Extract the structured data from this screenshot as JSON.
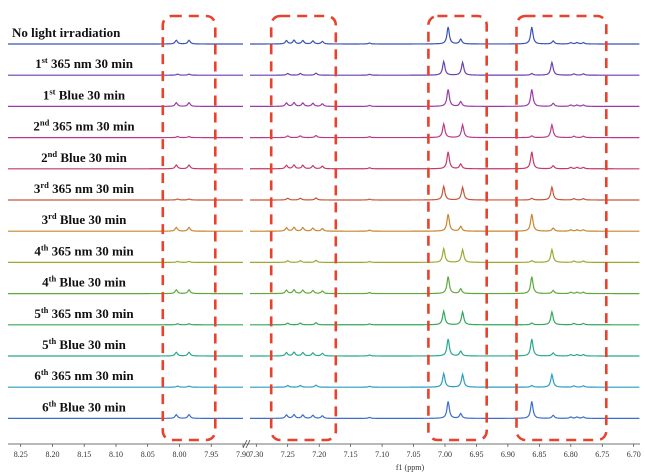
{
  "chart_data": {
    "type": "line",
    "xlabel": "f1 (ppm)",
    "x_axis_reversed": true,
    "x_axis_break": [
      8.0,
      7.3
    ],
    "ticks_left": [
      "8.25",
      "8.20",
      "8.15",
      "8.10",
      "8.05",
      "8.00",
      "7.95",
      "7.90"
    ],
    "ticks_right": [
      "7.30",
      "7.25",
      "7.20",
      "7.15",
      "7.10",
      "7.05",
      "7.00",
      "6.95",
      "6.90",
      "6.85",
      "6.80",
      "6.75",
      "6.70"
    ],
    "highlight_regions_ppm": [
      [
        8.02,
        7.95
      ],
      [
        7.27,
        7.18
      ],
      [
        7.02,
        6.94
      ],
      [
        6.88,
        6.75
      ]
    ],
    "highlight_color": "#e8412c",
    "spectra": [
      {
        "label": "No light irradiation",
        "ordinal": "",
        "ordinal_sup": "",
        "condition": "",
        "state": "blue",
        "color": "#3a52b3"
      },
      {
        "label": "365 nm 30 min",
        "ordinal": "1",
        "ordinal_sup": "st",
        "condition": "365 nm 30 min",
        "state": "uv",
        "color": "#6c3fb3"
      },
      {
        "label": "Blue 30 min",
        "ordinal": "1",
        "ordinal_sup": "st",
        "condition": "Blue 30 min",
        "state": "blue",
        "color": "#9b3aa8"
      },
      {
        "label": "365 nm 30 min",
        "ordinal": "2",
        "ordinal_sup": "nd",
        "condition": "365 nm 30 min",
        "state": "uv",
        "color": "#b83a8a"
      },
      {
        "label": "Blue 30 min",
        "ordinal": "2",
        "ordinal_sup": "nd",
        "condition": "Blue 30 min",
        "state": "blue",
        "color": "#c43a62"
      },
      {
        "label": "365 nm 30 min",
        "ordinal": "3",
        "ordinal_sup": "rd",
        "condition": "365 nm 30 min",
        "state": "uv",
        "color": "#c8543a"
      },
      {
        "label": "Blue 30 min",
        "ordinal": "3",
        "ordinal_sup": "rd",
        "condition": "Blue 30 min",
        "state": "blue",
        "color": "#c8852e"
      },
      {
        "label": "365 nm 30 min",
        "ordinal": "4",
        "ordinal_sup": "th",
        "condition": "365 nm 30 min",
        "state": "uv",
        "color": "#9ea830"
      },
      {
        "label": "Blue 30 min",
        "ordinal": "4",
        "ordinal_sup": "th",
        "condition": "Blue 30 min",
        "state": "blue",
        "color": "#5fa83c"
      },
      {
        "label": "365 nm 30 min",
        "ordinal": "5",
        "ordinal_sup": "th",
        "condition": "365 nm 30 min",
        "state": "uv",
        "color": "#34a85a"
      },
      {
        "label": "Blue 30 min",
        "ordinal": "5",
        "ordinal_sup": "th",
        "condition": "Blue 30 min",
        "state": "blue",
        "color": "#2aa88e"
      },
      {
        "label": "365 nm 30 min",
        "ordinal": "6",
        "ordinal_sup": "th",
        "condition": "365 nm 30 min",
        "state": "uv",
        "color": "#2a9ec0"
      },
      {
        "label": "Blue 30 min",
        "ordinal": "6",
        "ordinal_sup": "th",
        "condition": "Blue 30 min",
        "state": "blue",
        "color": "#3a6ec8"
      }
    ],
    "peaks_ppm": {
      "blue": [
        {
          "x": 8.005,
          "h": 0.22
        },
        {
          "x": 7.985,
          "h": 0.22
        },
        {
          "x": 7.252,
          "h": 0.2
        },
        {
          "x": 7.24,
          "h": 0.22
        },
        {
          "x": 7.226,
          "h": 0.2
        },
        {
          "x": 7.21,
          "h": 0.18
        },
        {
          "x": 7.195,
          "h": 0.15
        },
        {
          "x": 7.12,
          "h": 0.06
        },
        {
          "x": 6.995,
          "h": 1.0
        },
        {
          "x": 6.975,
          "h": 0.28
        },
        {
          "x": 6.862,
          "h": 1.0
        },
        {
          "x": 6.828,
          "h": 0.18
        },
        {
          "x": 6.8,
          "h": 0.08
        },
        {
          "x": 6.79,
          "h": 0.08
        },
        {
          "x": 6.78,
          "h": 0.08
        }
      ],
      "uv": [
        {
          "x": 8.003,
          "h": 0.06
        },
        {
          "x": 7.985,
          "h": 0.06
        },
        {
          "x": 7.25,
          "h": 0.1
        },
        {
          "x": 7.23,
          "h": 0.1
        },
        {
          "x": 7.205,
          "h": 0.12
        },
        {
          "x": 7.12,
          "h": 0.05
        },
        {
          "x": 7.002,
          "h": 0.8
        },
        {
          "x": 6.972,
          "h": 0.75
        },
        {
          "x": 6.862,
          "h": 0.1
        },
        {
          "x": 6.83,
          "h": 0.75
        },
        {
          "x": 6.795,
          "h": 0.08
        },
        {
          "x": 6.78,
          "h": 0.08
        }
      ]
    }
  }
}
